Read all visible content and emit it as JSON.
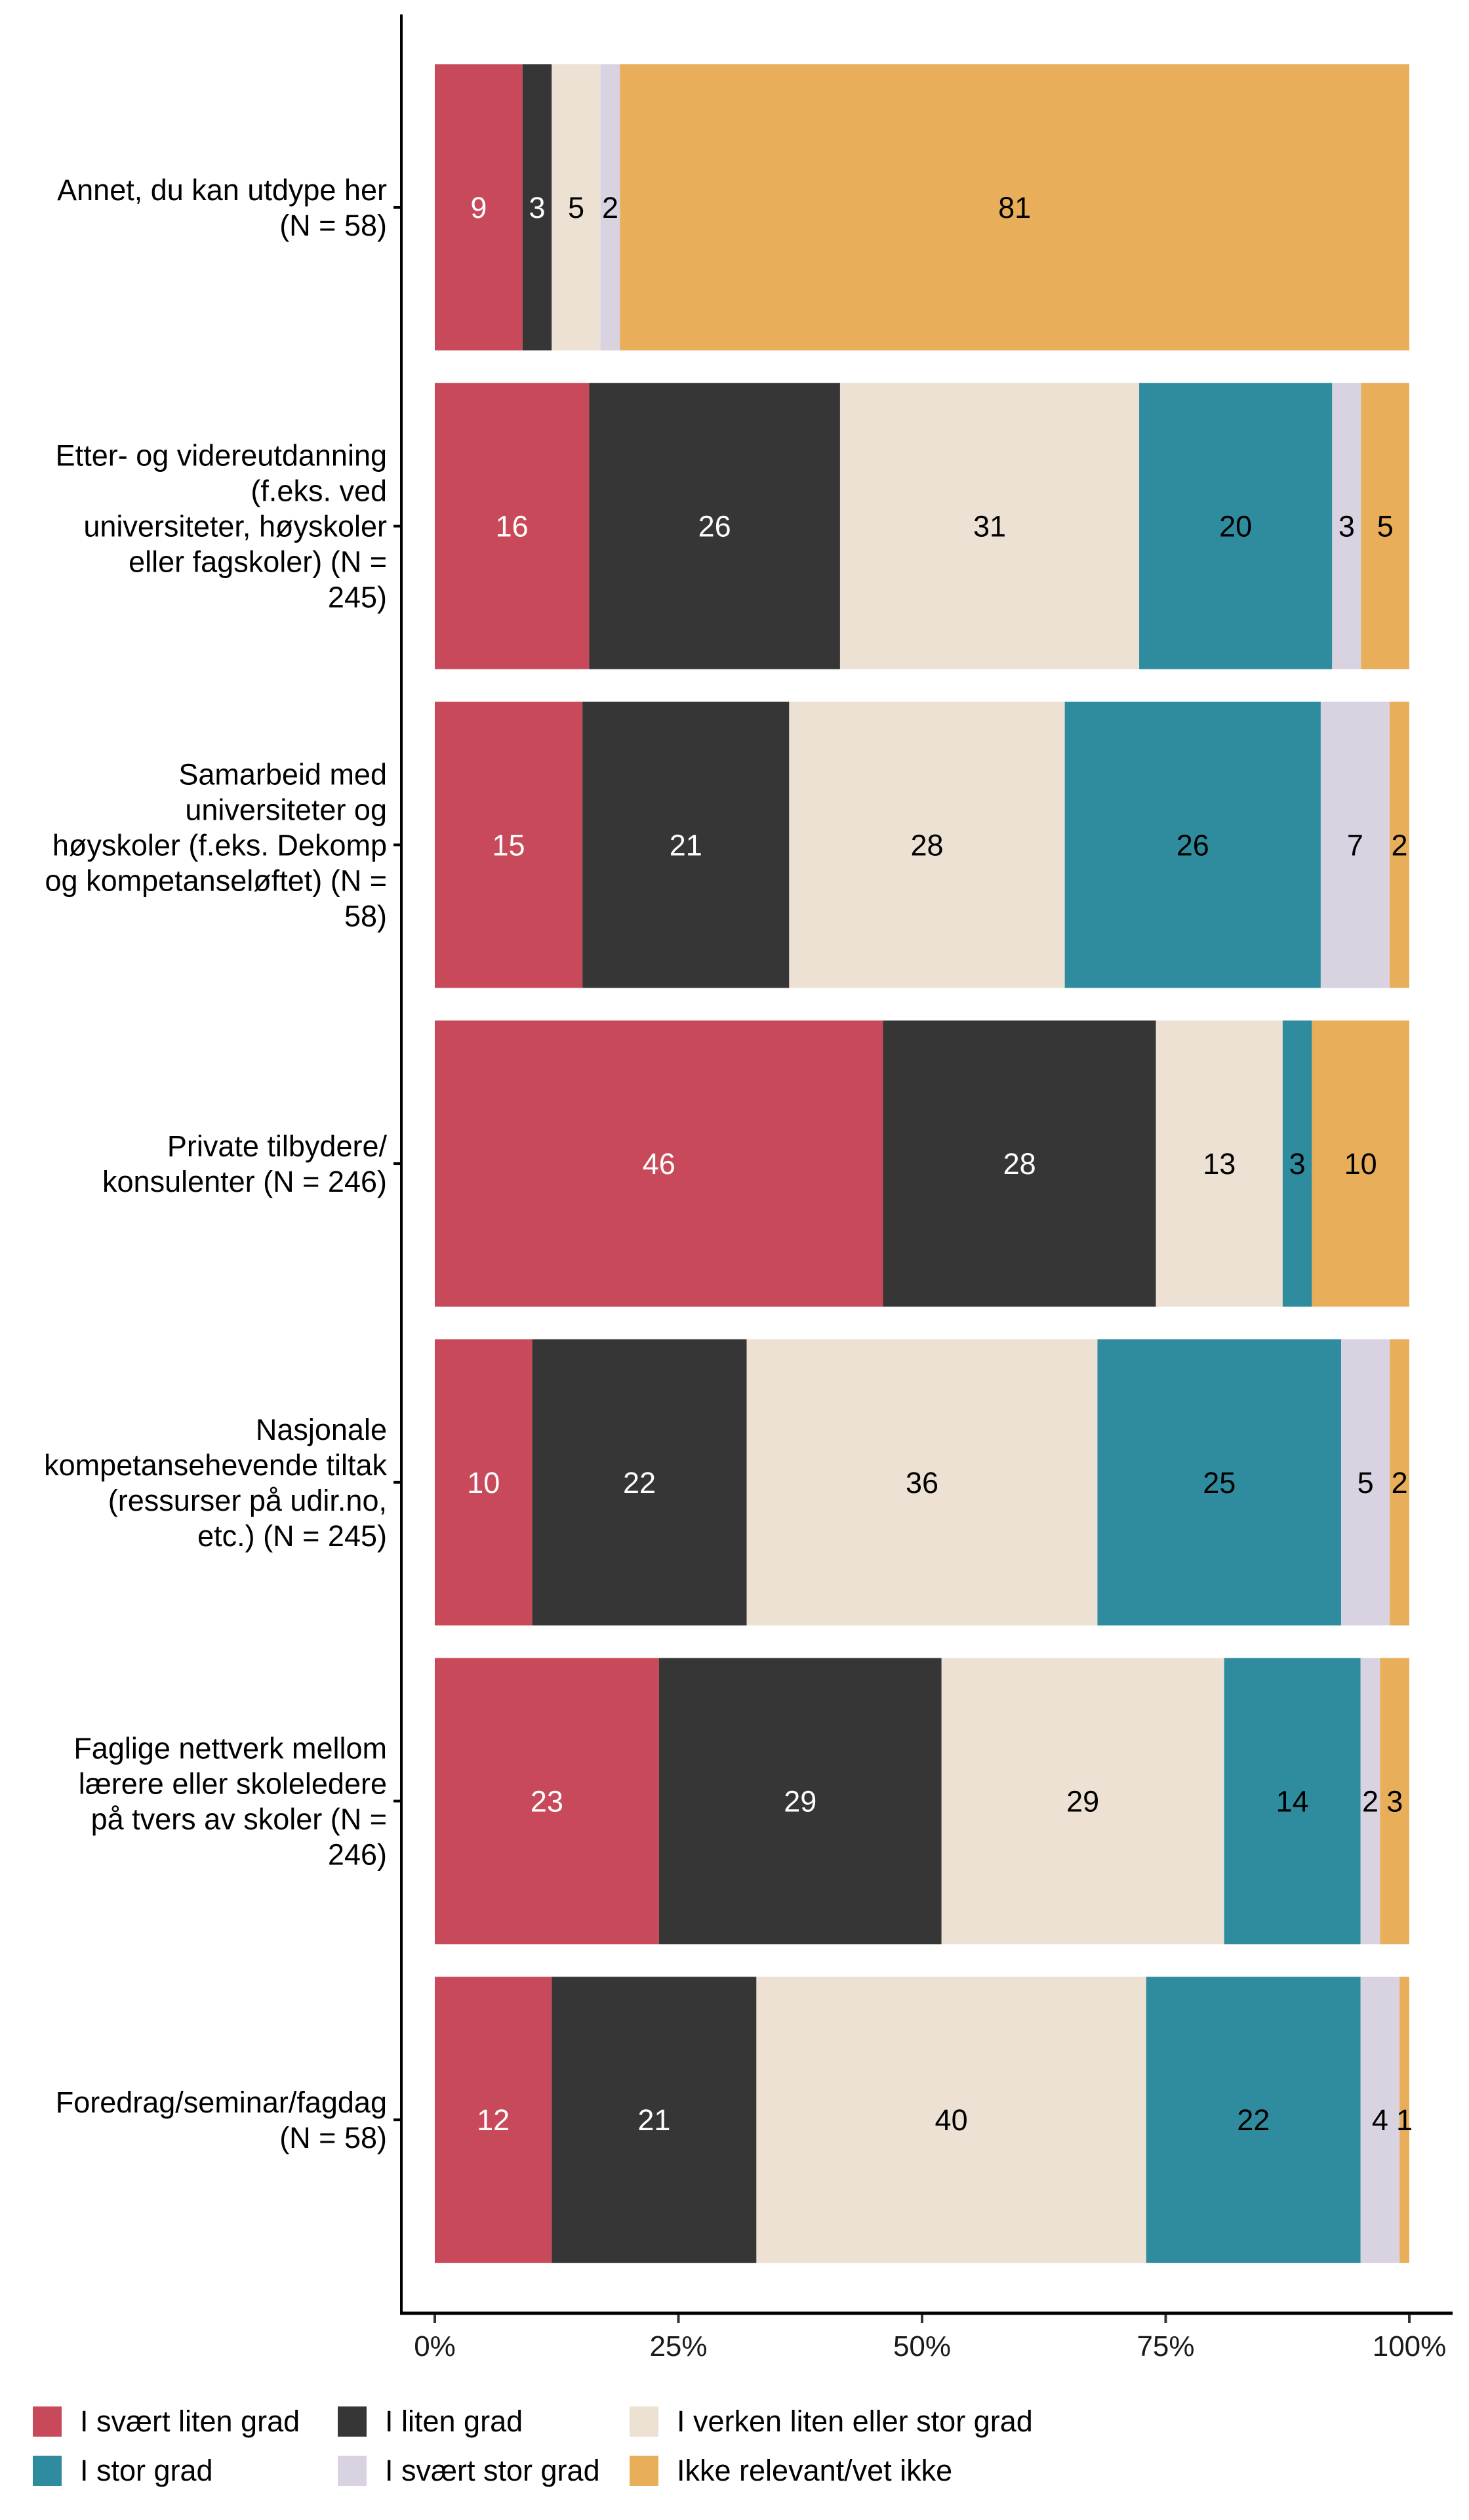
{
  "chart_data": {
    "type": "bar",
    "orientation": "horizontal",
    "stacked": true,
    "percent_stacked": true,
    "title": "",
    "xlabel": "",
    "ylabel": "",
    "xlim": [
      0,
      100
    ],
    "x_ticks": [
      "0%",
      "25%",
      "50%",
      "75%",
      "100%"
    ],
    "x_tick_values": [
      0,
      25,
      50,
      75,
      100
    ],
    "grid": false,
    "legend_position": "bottom",
    "categories": [
      "Annet, du kan utdype her (N = 58)",
      "Etter- og videreutdanning (f.eks. ved universiteter, høyskoler eller fagskoler) (N = 245)",
      "Samarbeid med universiteter og høyskoler (f.eks. Dekomp og kompetanseløftet) (N = 58)",
      "Private tilbydere/ konsulenter (N = 246)",
      "Nasjonale kompetansehevende tiltak (ressurser på udir.no, etc.) (N = 245)",
      "Faglige nettverk mellom lærere eller skoleledere på tvers av skoler (N = 246)",
      "Foredrag/seminar/fagdag (N = 58)"
    ],
    "category_lines": [
      [
        "Annet, du kan utdype her",
        "(N = 58)"
      ],
      [
        "Etter- og videreutdanning",
        "(f.eks. ved",
        "universiteter, høyskoler",
        "eller fagskoler) (N =",
        "245)"
      ],
      [
        "Samarbeid med",
        "universiteter og",
        "høyskoler (f.eks. Dekomp",
        "og kompetanseløftet) (N =",
        "58)"
      ],
      [
        "Private tilbydere/",
        "konsulenter (N = 246)"
      ],
      [
        "Nasjonale",
        "kompetansehevende tiltak",
        "(ressurser på udir.no,",
        "etc.) (N = 245)"
      ],
      [
        "Faglige nettverk mellom",
        "lærere eller skoleledere",
        "på tvers av skoler (N =",
        "246)"
      ],
      [
        "Foredrag/seminar/fagdag",
        "(N = 58)"
      ]
    ],
    "series": [
      {
        "name": "I svært liten grad",
        "color": "#c84a5a",
        "label_color": "#ffffff",
        "values": [
          9,
          16,
          15,
          46,
          10,
          23,
          12
        ]
      },
      {
        "name": "I liten grad",
        "color": "#363636",
        "label_color": "#ffffff",
        "values": [
          3,
          26,
          21,
          28,
          22,
          29,
          21
        ]
      },
      {
        "name": "I verken liten eller stor grad",
        "color": "#ece1d2",
        "label_color": "#000000",
        "values": [
          5,
          31,
          28,
          13,
          36,
          29,
          40
        ]
      },
      {
        "name": "I stor grad",
        "color": "#2e8c9e",
        "label_color": "#000000",
        "values": [
          0,
          20,
          26,
          3,
          25,
          14,
          22
        ]
      },
      {
        "name": "I svært stor grad",
        "color": "#d9d2e0",
        "label_color": "#000000",
        "values": [
          2,
          3,
          7,
          0,
          5,
          2,
          4
        ]
      },
      {
        "name": "Ikke relevant/vet ikke",
        "color": "#e8ae5a",
        "label_color": "#000000",
        "values": [
          81,
          5,
          2,
          10,
          2,
          3,
          1
        ]
      }
    ],
    "legend_rows": [
      [
        0,
        1,
        2
      ],
      [
        3,
        4,
        5
      ]
    ]
  }
}
